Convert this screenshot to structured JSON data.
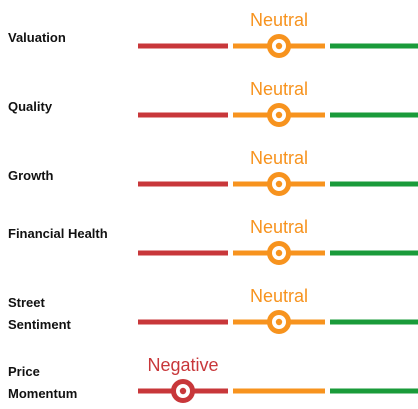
{
  "rows": [
    {
      "label": "Valuation",
      "rating": "Neutral",
      "segment": 1
    },
    {
      "label": "Quality",
      "rating": "Neutral",
      "segment": 1
    },
    {
      "label": "Growth",
      "rating": "Neutral",
      "segment": 1
    },
    {
      "label": "Financial Health",
      "rating": "Neutral",
      "segment": 1
    },
    {
      "label": "Street Sentiment",
      "rating": "Neutral",
      "segment": 1
    },
    {
      "label": "Price Momentum",
      "rating": "Negative",
      "segment": 0
    }
  ],
  "segment_colors": [
    "#c8373a",
    "#f7931e",
    "#1a9b3a"
  ]
}
